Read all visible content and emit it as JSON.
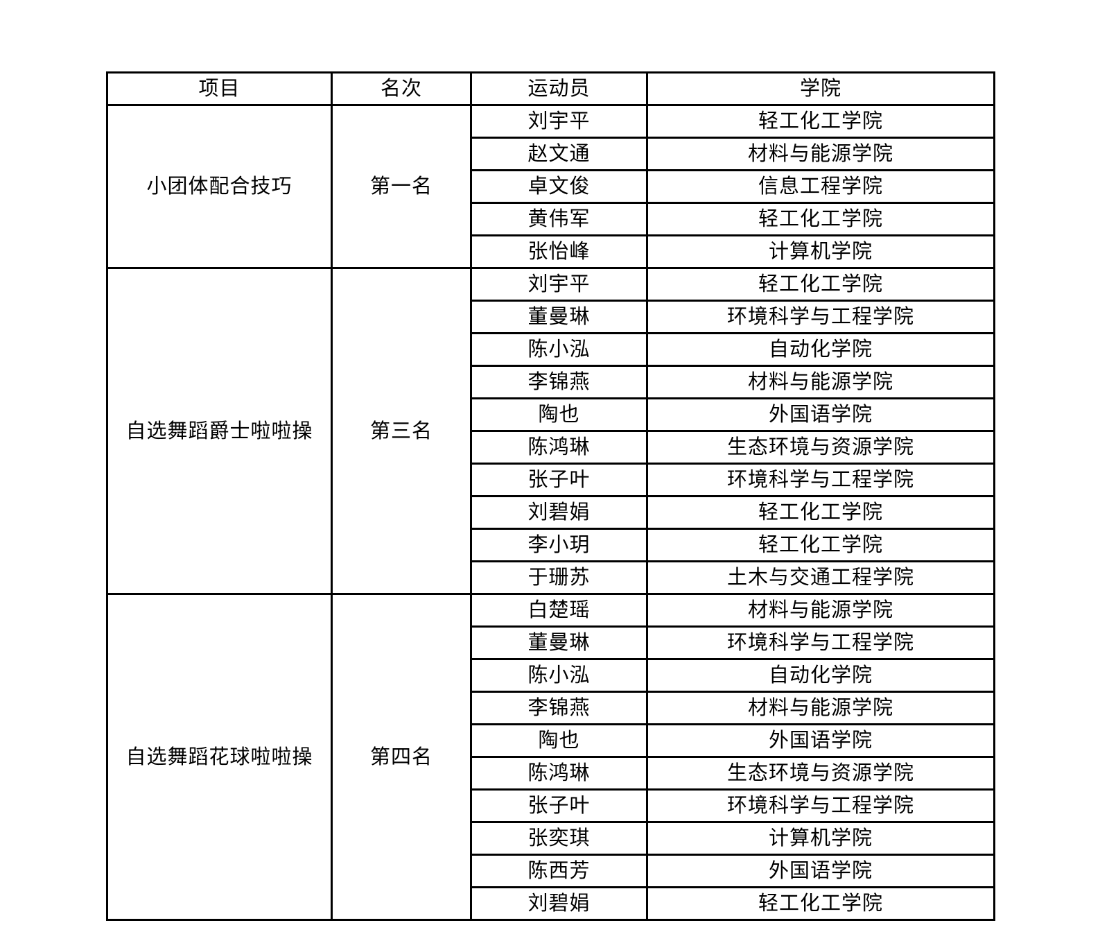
{
  "colors": {
    "background": "#ffffff",
    "border": "#000000",
    "text": "#000000"
  },
  "table": {
    "headers": [
      "项目",
      "名次",
      "运动员",
      "学院"
    ],
    "groups": [
      {
        "event": "小团体配合技巧",
        "rank": "第一名",
        "rows": [
          {
            "athlete": "刘宇平",
            "college": "轻工化工学院"
          },
          {
            "athlete": "赵文通",
            "college": "材料与能源学院"
          },
          {
            "athlete": "卓文俊",
            "college": "信息工程学院"
          },
          {
            "athlete": "黄伟军",
            "college": "轻工化工学院"
          },
          {
            "athlete": "张怡峰",
            "college": "计算机学院"
          }
        ]
      },
      {
        "event": "自选舞蹈爵士啦啦操",
        "rank": "第三名",
        "rows": [
          {
            "athlete": "刘宇平",
            "college": "轻工化工学院"
          },
          {
            "athlete": "董曼琳",
            "college": "环境科学与工程学院"
          },
          {
            "athlete": "陈小泓",
            "college": "自动化学院"
          },
          {
            "athlete": "李锦燕",
            "college": "材料与能源学院"
          },
          {
            "athlete": "陶也",
            "college": "外国语学院"
          },
          {
            "athlete": "陈鸿琳",
            "college": "生态环境与资源学院"
          },
          {
            "athlete": "张子叶",
            "college": "环境科学与工程学院"
          },
          {
            "athlete": "刘碧娟",
            "college": "轻工化工学院"
          },
          {
            "athlete": "李小玥",
            "college": "轻工化工学院"
          },
          {
            "athlete": "于珊苏",
            "college": "土木与交通工程学院"
          }
        ]
      },
      {
        "event": "自选舞蹈花球啦啦操",
        "rank": "第四名",
        "rows": [
          {
            "athlete": "白楚瑶",
            "college": "材料与能源学院"
          },
          {
            "athlete": "董曼琳",
            "college": "环境科学与工程学院"
          },
          {
            "athlete": "陈小泓",
            "college": "自动化学院"
          },
          {
            "athlete": "李锦燕",
            "college": "材料与能源学院"
          },
          {
            "athlete": "陶也",
            "college": "外国语学院"
          },
          {
            "athlete": "陈鸿琳",
            "college": "生态环境与资源学院"
          },
          {
            "athlete": "张子叶",
            "college": "环境科学与工程学院"
          },
          {
            "athlete": "张奕琪",
            "college": "计算机学院"
          },
          {
            "athlete": "陈西芳",
            "college": "外国语学院"
          },
          {
            "athlete": "刘碧娟",
            "college": "轻工化工学院"
          }
        ]
      }
    ]
  }
}
